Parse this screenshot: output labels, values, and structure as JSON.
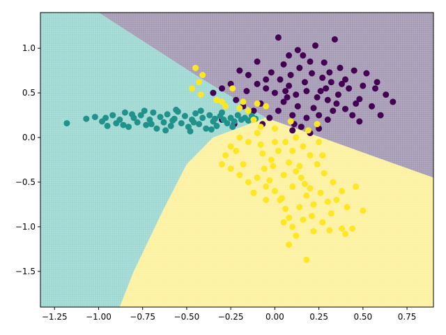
{
  "chart_data": {
    "type": "scatter",
    "title": "",
    "xlabel": "",
    "ylabel": "",
    "xlim": [
      -1.33,
      0.9
    ],
    "ylim": [
      -1.9,
      1.4
    ],
    "grid": false,
    "legend": "none",
    "x_ticks": [
      {
        "value": -1.25,
        "label": "−1.25"
      },
      {
        "value": -1.0,
        "label": "−1.00"
      },
      {
        "value": -0.75,
        "label": "−0.75"
      },
      {
        "value": -0.5,
        "label": "−0.50"
      },
      {
        "value": -0.25,
        "label": "−0.25"
      },
      {
        "value": 0.0,
        "label": "0.00"
      },
      {
        "value": 0.25,
        "label": "0.25"
      },
      {
        "value": 0.5,
        "label": "0.50"
      },
      {
        "value": 0.75,
        "label": "0.75"
      }
    ],
    "y_ticks": [
      {
        "value": 1.0,
        "label": "1.0"
      },
      {
        "value": 0.5,
        "label": "0.5"
      },
      {
        "value": 0.0,
        "label": "0.0"
      },
      {
        "value": -0.5,
        "label": "−0.5"
      },
      {
        "value": -1.0,
        "label": "−1.0"
      },
      {
        "value": -1.5,
        "label": "−1.5"
      }
    ],
    "regions": [
      {
        "color": "#a69bb5",
        "polygon": [
          [
            -1.0,
            1.4
          ],
          [
            0.9,
            1.4
          ],
          [
            0.9,
            -0.45
          ],
          [
            -0.05,
            0.22
          ],
          [
            -0.45,
            0.7
          ]
        ]
      },
      {
        "color": "#9fd8d2",
        "polygon": [
          [
            -1.33,
            1.4
          ],
          [
            -1.0,
            1.4
          ],
          [
            -0.45,
            0.7
          ],
          [
            -0.05,
            0.22
          ],
          [
            -0.35,
            0.0
          ],
          [
            -0.5,
            -0.3
          ],
          [
            -0.63,
            -0.8
          ],
          [
            -0.8,
            -1.5
          ],
          [
            -0.88,
            -1.9
          ],
          [
            -1.33,
            -1.9
          ]
        ]
      },
      {
        "color": "#fbf1a0",
        "polygon": [
          [
            -0.05,
            0.22
          ],
          [
            0.9,
            -0.45
          ],
          [
            0.9,
            -1.9
          ],
          [
            -0.88,
            -1.9
          ],
          [
            -0.8,
            -1.5
          ],
          [
            -0.63,
            -0.8
          ],
          [
            -0.5,
            -0.3
          ],
          [
            -0.35,
            0.0
          ]
        ]
      }
    ],
    "series": [
      {
        "color": "#440154",
        "values": [
          [
            0.02,
            1.12
          ],
          [
            0.23,
            1.03
          ],
          [
            0.34,
            1.1
          ],
          [
            0.13,
            0.98
          ],
          [
            0.08,
            0.92
          ],
          [
            0.28,
            0.84
          ],
          [
            0.45,
            0.75
          ],
          [
            0.52,
            0.72
          ],
          [
            0.57,
            0.55
          ],
          [
            0.63,
            0.48
          ],
          [
            0.67,
            0.4
          ],
          [
            0.6,
            0.25
          ],
          [
            0.55,
            0.35
          ],
          [
            0.48,
            0.43
          ],
          [
            0.42,
            0.55
          ],
          [
            0.38,
            0.6
          ],
          [
            0.33,
            0.3
          ],
          [
            0.3,
            0.2
          ],
          [
            0.25,
            0.1
          ],
          [
            0.2,
            0.05
          ],
          [
            0.15,
            0.12
          ],
          [
            0.1,
            0.25
          ],
          [
            0.05,
            0.4
          ],
          [
            0.0,
            0.5
          ],
          [
            -0.05,
            0.55
          ],
          [
            -0.1,
            0.6
          ],
          [
            -0.15,
            0.7
          ],
          [
            -0.2,
            0.75
          ],
          [
            -0.25,
            0.6
          ],
          [
            -0.3,
            0.55
          ],
          [
            -0.35,
            0.5
          ],
          [
            -0.22,
            0.42
          ],
          [
            -0.18,
            0.35
          ],
          [
            -0.12,
            0.3
          ],
          [
            -0.08,
            0.38
          ],
          [
            0.03,
            0.65
          ],
          [
            0.08,
            0.58
          ],
          [
            0.12,
            0.48
          ],
          [
            0.17,
            0.62
          ],
          [
            0.21,
            0.72
          ],
          [
            0.26,
            0.52
          ],
          [
            0.3,
            0.42
          ],
          [
            0.35,
            0.38
          ],
          [
            0.4,
            0.32
          ],
          [
            0.44,
            0.25
          ],
          [
            0.48,
            0.18
          ],
          [
            0.22,
            0.33
          ],
          [
            0.18,
            0.22
          ],
          [
            0.13,
            0.35
          ],
          [
            0.07,
            0.45
          ],
          [
            0.02,
            0.3
          ],
          [
            -0.03,
            0.22
          ],
          [
            -0.07,
            0.15
          ],
          [
            0.27,
            0.67
          ],
          [
            0.32,
            0.62
          ],
          [
            0.37,
            0.78
          ],
          [
            0.14,
            0.78
          ],
          [
            0.05,
            0.82
          ],
          [
            -0.1,
            0.85
          ],
          [
            -0.3,
            0.2
          ],
          [
            -0.23,
            0.15
          ],
          [
            0.1,
            0.08
          ],
          [
            0.18,
            0.52
          ],
          [
            0.24,
            0.45
          ],
          [
            0.36,
            0.48
          ],
          [
            0.5,
            0.58
          ],
          [
            0.58,
            0.62
          ],
          [
            0.16,
            0.92
          ],
          [
            -0.02,
            0.73
          ],
          [
            -0.16,
            0.52
          ],
          [
            0.09,
            0.7
          ],
          [
            0.29,
            0.55
          ],
          [
            0.4,
            0.65
          ],
          [
            0.46,
            0.38
          ],
          [
            0.25,
            0.25
          ],
          [
            0.11,
            0.15
          ],
          [
            -0.05,
            0.65
          ],
          [
            0.2,
            0.85
          ],
          [
            0.06,
            0.52
          ],
          [
            0.31,
            0.73
          ]
        ]
      },
      {
        "color": "#21918c",
        "values": [
          [
            -1.18,
            0.16
          ],
          [
            -1.07,
            0.21
          ],
          [
            -1.02,
            0.23
          ],
          [
            -0.98,
            0.18
          ],
          [
            -0.95,
            0.13
          ],
          [
            -0.92,
            0.25
          ],
          [
            -0.9,
            0.16
          ],
          [
            -0.88,
            0.2
          ],
          [
            -0.85,
            0.28
          ],
          [
            -0.83,
            0.12
          ],
          [
            -0.8,
            0.22
          ],
          [
            -0.78,
            0.17
          ],
          [
            -0.76,
            0.25
          ],
          [
            -0.73,
            0.14
          ],
          [
            -0.71,
            0.2
          ],
          [
            -0.69,
            0.28
          ],
          [
            -0.67,
            0.1
          ],
          [
            -0.65,
            0.23
          ],
          [
            -0.63,
            0.17
          ],
          [
            -0.61,
            0.26
          ],
          [
            -0.59,
            0.13
          ],
          [
            -0.57,
            0.21
          ],
          [
            -0.55,
            0.29
          ],
          [
            -0.53,
            0.16
          ],
          [
            -0.51,
            0.24
          ],
          [
            -0.49,
            0.12
          ],
          [
            -0.47,
            0.2
          ],
          [
            -0.45,
            0.27
          ],
          [
            -0.43,
            0.15
          ],
          [
            -0.41,
            0.22
          ],
          [
            -0.39,
            0.1
          ],
          [
            -0.37,
            0.25
          ],
          [
            -0.35,
            0.18
          ],
          [
            -0.33,
            0.13
          ],
          [
            -0.31,
            0.24
          ],
          [
            -0.29,
            0.2
          ],
          [
            -0.27,
            0.16
          ],
          [
            -0.25,
            0.22
          ],
          [
            -0.23,
            0.18
          ],
          [
            -0.21,
            0.25
          ],
          [
            -0.19,
            0.2
          ],
          [
            -0.17,
            0.22
          ],
          [
            -0.15,
            0.19
          ],
          [
            -0.13,
            0.24
          ],
          [
            -0.11,
            0.21
          ],
          [
            -0.86,
            0.14
          ],
          [
            -0.74,
            0.3
          ],
          [
            -0.62,
            0.08
          ],
          [
            -0.56,
            0.31
          ],
          [
            -0.48,
            0.07
          ],
          [
            -0.42,
            0.3
          ],
          [
            -0.36,
            0.09
          ],
          [
            -0.3,
            0.28
          ],
          [
            -0.96,
            0.22
          ],
          [
            -0.81,
            0.26
          ],
          [
            -0.7,
            0.15
          ],
          [
            -0.58,
            0.19
          ],
          [
            -0.46,
            0.17
          ],
          [
            -0.34,
            0.21
          ],
          [
            -0.24,
            0.12
          ]
        ]
      },
      {
        "color": "#fde725",
        "values": [
          [
            -0.45,
            0.78
          ],
          [
            -0.41,
            0.7
          ],
          [
            -0.43,
            0.62
          ],
          [
            -0.47,
            0.55
          ],
          [
            -0.42,
            0.48
          ],
          [
            -0.33,
            0.42
          ],
          [
            -0.3,
            0.4
          ],
          [
            -0.28,
            0.35
          ],
          [
            -0.2,
            0.33
          ],
          [
            -0.24,
            0.55
          ],
          [
            -0.18,
            0.4
          ],
          [
            -0.15,
            0.3
          ],
          [
            -0.12,
            0.2
          ],
          [
            -0.08,
            0.12
          ],
          [
            -0.1,
            0.05
          ],
          [
            -0.15,
            -0.05
          ],
          [
            -0.2,
            0.0
          ],
          [
            -0.25,
            -0.1
          ],
          [
            -0.28,
            -0.2
          ],
          [
            -0.3,
            -0.3
          ],
          [
            -0.25,
            -0.35
          ],
          [
            -0.2,
            -0.42
          ],
          [
            -0.15,
            -0.5
          ],
          [
            -0.1,
            -0.45
          ],
          [
            -0.05,
            -0.55
          ],
          [
            0.0,
            -0.6
          ],
          [
            0.03,
            -0.7
          ],
          [
            0.06,
            -0.8
          ],
          [
            0.08,
            -0.9
          ],
          [
            0.1,
            -1.0
          ],
          [
            0.12,
            -1.1
          ],
          [
            0.08,
            -1.2
          ],
          [
            0.18,
            -1.37
          ],
          [
            0.22,
            -1.05
          ],
          [
            0.27,
            -0.95
          ],
          [
            0.32,
            -0.85
          ],
          [
            0.38,
            -1.02
          ],
          [
            0.4,
            -1.08
          ],
          [
            0.44,
            -1.02
          ],
          [
            0.5,
            -0.82
          ],
          [
            0.46,
            -0.55
          ],
          [
            0.38,
            -0.6
          ],
          [
            0.33,
            -0.5
          ],
          [
            0.28,
            -0.4
          ],
          [
            0.24,
            -0.3
          ],
          [
            0.2,
            -0.2
          ],
          [
            0.16,
            -0.1
          ],
          [
            0.12,
            0.0
          ],
          [
            0.06,
            -0.05
          ],
          [
            0.02,
            -0.15
          ],
          [
            -0.02,
            -0.25
          ],
          [
            -0.06,
            -0.35
          ],
          [
            0.15,
            -0.45
          ],
          [
            0.18,
            -0.65
          ],
          [
            0.22,
            -0.75
          ],
          [
            0.26,
            -0.62
          ],
          [
            0.3,
            -0.72
          ],
          [
            0.1,
            -0.55
          ],
          [
            0.05,
            -0.42
          ],
          [
            -0.01,
            -0.32
          ],
          [
            0.08,
            -0.28
          ],
          [
            0.14,
            -0.32
          ],
          [
            0.17,
            -0.52
          ],
          [
            0.21,
            -0.88
          ],
          [
            0.14,
            -0.78
          ],
          [
            0.05,
            -0.95
          ],
          [
            -0.05,
            -0.7
          ],
          [
            -0.12,
            -0.62
          ],
          [
            -0.18,
            -0.3
          ],
          [
            -0.22,
            -0.15
          ],
          [
            0.24,
            0.15
          ],
          [
            0.25,
            -0.05
          ],
          [
            0.19,
            0.08
          ],
          [
            0.09,
            0.18
          ],
          [
            -0.05,
            0.35
          ],
          [
            -0.1,
            0.38
          ],
          [
            0.1,
            -0.15
          ],
          [
            0.0,
            -0.05
          ],
          [
            -0.07,
            -0.18
          ],
          [
            0.35,
            -0.7
          ],
          [
            0.12,
            -0.38
          ],
          [
            0.27,
            -0.2
          ],
          [
            0.41,
            -0.78
          ],
          [
            0.31,
            -1.04
          ],
          [
            0.2,
            -0.57
          ],
          [
            0.04,
            -0.68
          ],
          [
            -0.08,
            -0.08
          ],
          [
            0.0,
            0.1
          ],
          [
            -0.03,
            -0.48
          ],
          [
            0.16,
            -0.92
          ]
        ]
      }
    ]
  }
}
